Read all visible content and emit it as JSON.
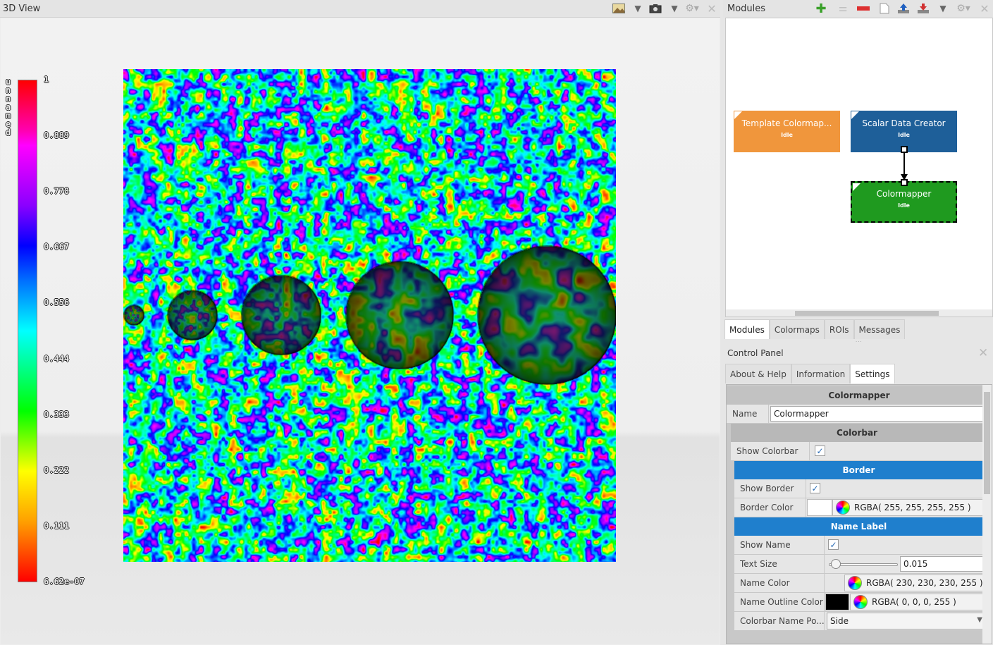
{
  "view3d": {
    "title": "3D View",
    "colorbar": {
      "name": "unnamed",
      "ticks": [
        "1",
        "0.889",
        "0.778",
        "0.667",
        "0.556",
        "0.444",
        "0.333",
        "0.222",
        "0.111",
        "6.62e-07"
      ]
    },
    "toolbar_icons": [
      "image-icon",
      "dropdown-arrow-icon",
      "camera-icon",
      "dropdown-arrow-icon",
      "gear-icon",
      "close-icon"
    ]
  },
  "modules": {
    "title": "Modules",
    "toolbar_icons": [
      "add-module-icon",
      "connect-icon",
      "remove-icon",
      "new-file-icon",
      "upload-icon",
      "download-icon",
      "dropdown-arrow-icon",
      "gear-icon",
      "close-icon"
    ],
    "nodes": [
      {
        "title": "Template Colormap...",
        "status": "Idle",
        "color": "#f0963c"
      },
      {
        "title": "Scalar Data Creator",
        "status": "Idle",
        "color": "#1e5f99"
      },
      {
        "title": "Colormapper",
        "status": "Idle",
        "color": "#1f9a1f"
      }
    ]
  },
  "bottom_tabs": [
    "Modules",
    "Colormaps",
    "ROIs",
    "Messages"
  ],
  "control_panel": {
    "title": "Control Panel",
    "tabs": [
      "About & Help",
      "Information",
      "Settings"
    ],
    "module_header": "Colormapper",
    "name_label": "Name",
    "name_value": "Colormapper",
    "colorbar_header": "Colorbar",
    "show_colorbar_label": "Show Colorbar",
    "show_colorbar": true,
    "border_header": "Border",
    "show_border_label": "Show Border",
    "show_border": true,
    "border_color_label": "Border Color",
    "border_color_value": "RGBA( 255, 255, 255, 255 )",
    "border_color_swatch": "#ffffff",
    "name_label_header": "Name Label",
    "show_name_label": "Show Name",
    "show_name": true,
    "text_size_label": "Text Size",
    "text_size_value": "0.015",
    "text_size_slider_fraction": 0.1,
    "name_color_label": "Name Color",
    "name_color_value": "RGBA( 230, 230, 230, 255 )",
    "name_outline_label": "Name Outline Color",
    "name_outline_value": "RGBA( 0, 0, 0, 255 )",
    "name_outline_swatch": "#000000",
    "colorbar_name_pos_label": "Colorbar Name Po...",
    "colorbar_name_pos_value": "Side"
  }
}
